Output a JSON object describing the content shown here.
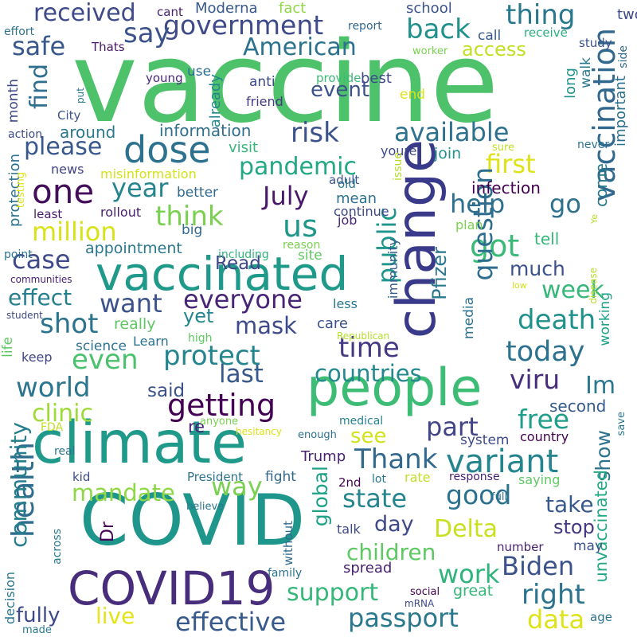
{
  "palette": {
    "dark_purple": "#440154",
    "indigo": "#3b3f8c",
    "blue": "#31688e",
    "teal": "#26828e",
    "green_teal": "#1f9e89",
    "green": "#35b779",
    "light_green": "#6ece58",
    "lime": "#b5de2b",
    "yellow": "#e0e51f"
  },
  "words": [
    {
      "text": "vaccine",
      "color": "#4ec26b"
    },
    {
      "text": "change",
      "color": "#3a3a8a"
    },
    {
      "text": "people",
      "color": "#3cbc74"
    },
    {
      "text": "climate",
      "color": "#1f9a8a"
    },
    {
      "text": "COVID",
      "color": "#1f968b"
    },
    {
      "text": "COVID19",
      "color": "#472d7b"
    },
    {
      "text": "vaccinated",
      "color": "#1f9a8a"
    },
    {
      "text": "dose",
      "color": "#2c728e"
    },
    {
      "text": "health",
      "color": "#2e6d8e"
    },
    {
      "text": "one",
      "color": "#440f5a"
    },
    {
      "text": "vaccination",
      "color": "#31688e"
    },
    {
      "text": "government",
      "color": "#3e4a89"
    },
    {
      "text": "American",
      "color": "#2c728e"
    },
    {
      "text": "received",
      "color": "#3e4a89"
    },
    {
      "text": "say",
      "color": "#3b528b"
    },
    {
      "text": "safe",
      "color": "#38588c"
    },
    {
      "text": "back",
      "color": "#21918c"
    },
    {
      "text": "thing",
      "color": "#2a788e"
    },
    {
      "text": "access",
      "color": "#c2df23"
    },
    {
      "text": "find",
      "color": "#2e6e8e"
    },
    {
      "text": "please",
      "color": "#38588c"
    },
    {
      "text": "year",
      "color": "#25858e"
    },
    {
      "text": "pandemic",
      "color": "#22a884"
    },
    {
      "text": "risk",
      "color": "#3b528b"
    },
    {
      "text": "available",
      "color": "#2d718e"
    },
    {
      "text": "first",
      "color": "#dde318"
    },
    {
      "text": "help",
      "color": "#2d708e"
    },
    {
      "text": "go",
      "color": "#2c728e"
    },
    {
      "text": "million",
      "color": "#d8e219"
    },
    {
      "text": "think",
      "color": "#7ad151"
    },
    {
      "text": "July",
      "color": "#481a6c"
    },
    {
      "text": "us",
      "color": "#1f978b"
    },
    {
      "text": "public",
      "color": "#1f968b"
    },
    {
      "text": "case",
      "color": "#3e4a89"
    },
    {
      "text": "event",
      "color": "#3b528b"
    },
    {
      "text": "Read",
      "color": "#414487"
    },
    {
      "text": "got",
      "color": "#3aba76"
    },
    {
      "text": "Pfizer",
      "color": "#2a788e"
    },
    {
      "text": "question",
      "color": "#2e6d8e"
    },
    {
      "text": "week",
      "color": "#35b779"
    },
    {
      "text": "much",
      "color": "#3b528b"
    },
    {
      "text": "want",
      "color": "#3b528b"
    },
    {
      "text": "everyone",
      "color": "#482576"
    },
    {
      "text": "effect",
      "color": "#277f8e"
    },
    {
      "text": "shot",
      "color": "#2c738e"
    },
    {
      "text": "mask",
      "color": "#3e4a89"
    },
    {
      "text": "yet",
      "color": "#24868e"
    },
    {
      "text": "death",
      "color": "#21918c"
    },
    {
      "text": "today",
      "color": "#2c728e"
    },
    {
      "text": "protect",
      "color": "#25858e"
    },
    {
      "text": "time",
      "color": "#443983"
    },
    {
      "text": "even",
      "color": "#4ac16d"
    },
    {
      "text": "countries",
      "color": "#23898e"
    },
    {
      "text": "last",
      "color": "#38598c"
    },
    {
      "text": "world",
      "color": "#2b758e"
    },
    {
      "text": "viru",
      "color": "#472d7b"
    },
    {
      "text": "Im",
      "color": "#2a788e"
    },
    {
      "text": "getting",
      "color": "#440154"
    },
    {
      "text": "said",
      "color": "#3b528b"
    },
    {
      "text": "clinic",
      "color": "#a0da39"
    },
    {
      "text": "part",
      "color": "#414487"
    },
    {
      "text": "free",
      "color": "#1f9e89"
    },
    {
      "text": "see",
      "color": "#d2e21b"
    },
    {
      "text": "Thank",
      "color": "#31688e"
    },
    {
      "text": "variant",
      "color": "#25858e"
    },
    {
      "text": "show",
      "color": "#2c728e"
    },
    {
      "text": "second",
      "color": "#365c8d"
    },
    {
      "text": "community",
      "color": "#277f8e"
    },
    {
      "text": "mandate",
      "color": "#8fd744"
    },
    {
      "text": "way",
      "color": "#7ad151"
    },
    {
      "text": "state",
      "color": "#25858e"
    },
    {
      "text": "good",
      "color": "#2c728e"
    },
    {
      "text": "global",
      "color": "#1fa187"
    },
    {
      "text": "take",
      "color": "#38598c"
    },
    {
      "text": "day",
      "color": "#3e4989"
    },
    {
      "text": "Delta",
      "color": "#c8e020"
    },
    {
      "text": "stop",
      "color": "#453781"
    },
    {
      "text": "children",
      "color": "#5ec962"
    },
    {
      "text": "Biden",
      "color": "#3b528b"
    },
    {
      "text": "work",
      "color": "#2fb47c"
    },
    {
      "text": "support",
      "color": "#35b779"
    },
    {
      "text": "right",
      "color": "#2c738e"
    },
    {
      "text": "unvaccinated",
      "color": "#22a884"
    },
    {
      "text": "fully",
      "color": "#3e4989"
    },
    {
      "text": "live",
      "color": "#e5e419"
    },
    {
      "text": "effective",
      "color": "#38598c"
    },
    {
      "text": "passport",
      "color": "#2a788e"
    },
    {
      "text": "data",
      "color": "#dde318"
    },
    {
      "text": "Dr",
      "color": "#440154"
    },
    {
      "text": "best",
      "color": "#3e4989"
    },
    {
      "text": "school",
      "color": "#3b528b"
    },
    {
      "text": "Moderna",
      "color": "#38598c"
    },
    {
      "text": "fact",
      "color": "#8fd744"
    },
    {
      "text": "two",
      "color": "#3e4989"
    },
    {
      "text": "cant",
      "color": "#482173"
    },
    {
      "text": "effort",
      "color": "#2c728e"
    },
    {
      "text": "report",
      "color": "#31688e"
    },
    {
      "text": "Thats",
      "color": "#48186a"
    },
    {
      "text": "call",
      "color": "#365c8d"
    },
    {
      "text": "receive",
      "color": "#2ab07f"
    },
    {
      "text": "side",
      "color": "#31688e"
    },
    {
      "text": "use",
      "color": "#2d708e"
    },
    {
      "text": "already",
      "color": "#24868e"
    },
    {
      "text": "worker",
      "color": "#7ad151"
    },
    {
      "text": "study",
      "color": "#3b528b"
    },
    {
      "text": "walk",
      "color": "#2a788e"
    },
    {
      "text": "young",
      "color": "#482878"
    },
    {
      "text": "put",
      "color": "#2a788e"
    },
    {
      "text": "month",
      "color": "#3e4989"
    },
    {
      "text": "anti",
      "color": "#3e4989"
    },
    {
      "text": "provide",
      "color": "#3aba76"
    },
    {
      "text": "end",
      "color": "#dde318"
    },
    {
      "text": "long",
      "color": "#21918c"
    },
    {
      "text": "important",
      "color": "#2c728e"
    },
    {
      "text": "friend",
      "color": "#453781"
    },
    {
      "text": "action",
      "color": "#3e4a89"
    },
    {
      "text": "City",
      "color": "#3b528b"
    },
    {
      "text": "around",
      "color": "#2a788e"
    },
    {
      "text": "information",
      "color": "#2e6e8e"
    },
    {
      "text": "visit",
      "color": "#35b779"
    },
    {
      "text": "youre",
      "color": "#3e4989"
    },
    {
      "text": "never",
      "color": "#2c728e"
    },
    {
      "text": "news",
      "color": "#414487"
    },
    {
      "text": "misinformation",
      "color": "#d2e21b"
    },
    {
      "text": "adult",
      "color": "#3b528b"
    },
    {
      "text": "sure",
      "color": "#c2df23"
    },
    {
      "text": "join",
      "color": "#21918c"
    },
    {
      "text": "protection",
      "color": "#2c728e"
    },
    {
      "text": "old",
      "color": "#2a788e"
    },
    {
      "text": "mean",
      "color": "#2c728e"
    },
    {
      "text": "issue",
      "color": "#b5de2b"
    },
    {
      "text": "infection",
      "color": "#440154"
    },
    {
      "text": "testing",
      "color": "#dde318"
    },
    {
      "text": "better",
      "color": "#31688e"
    },
    {
      "text": "come",
      "color": "#2a788e"
    },
    {
      "text": "least",
      "color": "#48186a"
    },
    {
      "text": "rollout",
      "color": "#482173"
    },
    {
      "text": "reason",
      "color": "#7ad151"
    },
    {
      "text": "continue",
      "color": "#3e4989"
    },
    {
      "text": "big",
      "color": "#31688e"
    },
    {
      "text": "job",
      "color": "#482878"
    },
    {
      "text": "plan",
      "color": "#7ad151"
    },
    {
      "text": "tell",
      "color": "#35b779"
    },
    {
      "text": "Ye",
      "color": "#b5de2b"
    },
    {
      "text": "point",
      "color": "#2c728e"
    },
    {
      "text": "appointment",
      "color": "#2a788e"
    },
    {
      "text": "including",
      "color": "#2fb47c"
    },
    {
      "text": "site",
      "color": "#5ec962"
    },
    {
      "text": "immunity",
      "color": "#365c8d"
    },
    {
      "text": "disease",
      "color": "#b5de2b"
    },
    {
      "text": "communities",
      "color": "#482173"
    },
    {
      "text": "media",
      "color": "#2c728e"
    },
    {
      "text": "working",
      "color": "#1fa187"
    },
    {
      "text": "low",
      "color": "#d2e21b"
    },
    {
      "text": "student",
      "color": "#3e4989"
    },
    {
      "text": "really",
      "color": "#5ec962"
    },
    {
      "text": "less",
      "color": "#2a788e"
    },
    {
      "text": "care",
      "color": "#3b528b"
    },
    {
      "text": "science",
      "color": "#2c728e"
    },
    {
      "text": "Learn",
      "color": "#2c728e"
    },
    {
      "text": "high",
      "color": "#5ec962"
    },
    {
      "text": "Republican",
      "color": "#b5de2b"
    },
    {
      "text": "life",
      "color": "#5ec962"
    },
    {
      "text": "keep",
      "color": "#414487"
    },
    {
      "text": "re",
      "color": "#482173"
    },
    {
      "text": "anyone",
      "color": "#7ad151"
    },
    {
      "text": "medical",
      "color": "#26828e"
    },
    {
      "text": "FDA",
      "color": "#c2df23"
    },
    {
      "text": "hesitancy",
      "color": "#dde318"
    },
    {
      "text": "enough",
      "color": "#2c728e"
    },
    {
      "text": "system",
      "color": "#3e4989"
    },
    {
      "text": "country",
      "color": "#440154"
    },
    {
      "text": "save",
      "color": "#2a788e"
    },
    {
      "text": "real",
      "color": "#2c728e"
    },
    {
      "text": "Trump",
      "color": "#482173"
    },
    {
      "text": "kid",
      "color": "#3e4989"
    },
    {
      "text": "President",
      "color": "#2c728e"
    },
    {
      "text": "fight",
      "color": "#31688e"
    },
    {
      "text": "rate",
      "color": "#c2df23"
    },
    {
      "text": "response",
      "color": "#482173"
    },
    {
      "text": "saying",
      "color": "#5ec962"
    },
    {
      "text": "2nd",
      "color": "#440154"
    },
    {
      "text": "lot",
      "color": "#2a788e"
    },
    {
      "text": "believe",
      "color": "#2a788e"
    },
    {
      "text": "without",
      "color": "#31688e"
    },
    {
      "text": "full",
      "color": "#2c728e"
    },
    {
      "text": "across",
      "color": "#2a788e"
    },
    {
      "text": "talk",
      "color": "#3e4989"
    },
    {
      "text": "number",
      "color": "#482173"
    },
    {
      "text": "may",
      "color": "#3b528b"
    },
    {
      "text": "decision",
      "color": "#2a788e"
    },
    {
      "text": "family",
      "color": "#2c728e"
    },
    {
      "text": "spread",
      "color": "#482173"
    },
    {
      "text": "great",
      "color": "#35b779"
    },
    {
      "text": "social",
      "color": "#440154"
    },
    {
      "text": "mRNA",
      "color": "#3e4989"
    },
    {
      "text": "age",
      "color": "#2c728e"
    },
    {
      "text": "made",
      "color": "#2a788e"
    }
  ]
}
